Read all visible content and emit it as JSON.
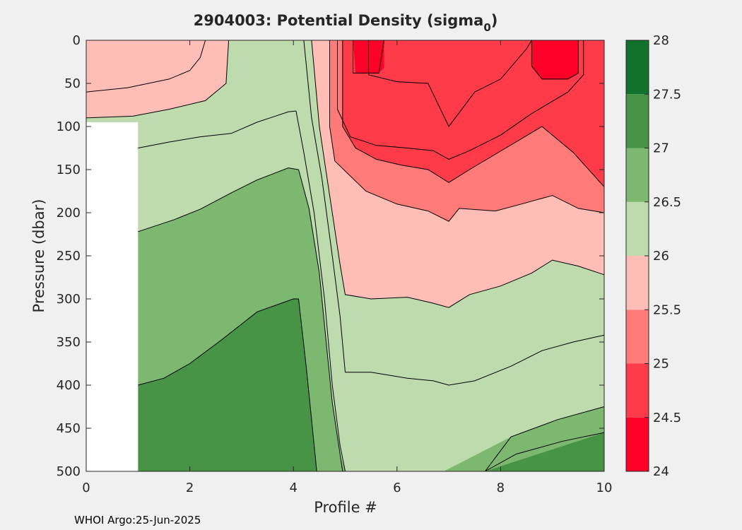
{
  "chart_data": {
    "type": "contour",
    "title_main": "2904003: Potential Density (sigma",
    "title_sub": "0",
    "title_end": ")",
    "xlabel": "Profile #",
    "ylabel": "Pressure (dbar)",
    "xlim": [
      0,
      10
    ],
    "ylim": [
      0,
      500
    ],
    "y_reversed": true,
    "x_ticks": [
      "0",
      "2",
      "4",
      "6",
      "8",
      "10"
    ],
    "y_ticks": [
      "0",
      "50",
      "100",
      "150",
      "200",
      "250",
      "300",
      "350",
      "400",
      "450",
      "500"
    ],
    "colorbar": {
      "range": [
        24,
        28
      ],
      "ticks": [
        "24",
        "24.5",
        "25",
        "25.5",
        "26",
        "26.5",
        "27",
        "27.5",
        "28"
      ],
      "level_colors": [
        "#ff0029",
        "#ff3b49",
        "#fe7b79",
        "#ffbdb8",
        "#bedbae",
        "#7cb870",
        "#479447",
        "#11722b"
      ]
    },
    "bands": [
      {
        "level": "24.5-25",
        "points": [
          [
            4.95,
            0
          ],
          [
            10,
            0
          ],
          [
            10,
            170
          ],
          [
            9.4,
            130
          ],
          [
            8.8,
            100
          ],
          [
            8.1,
            125
          ],
          [
            7.4,
            150
          ],
          [
            7.0,
            165
          ],
          [
            6.6,
            150
          ],
          [
            6.1,
            145
          ],
          [
            5.6,
            138
          ],
          [
            5.2,
            125
          ],
          [
            4.95,
            100
          ]
        ]
      },
      {
        "level": "24-24.5",
        "points": [
          [
            5.15,
            0
          ],
          [
            5.75,
            0
          ],
          [
            5.75,
            32
          ],
          [
            5.65,
            38
          ],
          [
            5.2,
            38
          ]
        ]
      },
      {
        "level": "24-24.5",
        "points": [
          [
            8.6,
            0
          ],
          [
            9.5,
            0
          ],
          [
            9.5,
            38
          ],
          [
            9.3,
            45
          ],
          [
            8.8,
            45
          ],
          [
            8.6,
            30
          ]
        ]
      },
      {
        "level": "25-25.5",
        "points": [
          [
            4.7,
            0
          ],
          [
            4.95,
            0
          ],
          [
            4.95,
            100
          ],
          [
            5.2,
            125
          ],
          [
            5.6,
            138
          ],
          [
            6.1,
            145
          ],
          [
            6.6,
            150
          ],
          [
            7.0,
            165
          ],
          [
            7.4,
            150
          ],
          [
            8.1,
            125
          ],
          [
            8.8,
            100
          ],
          [
            9.4,
            130
          ],
          [
            10,
            170
          ],
          [
            10,
            200
          ],
          [
            9.5,
            195
          ],
          [
            9.0,
            180
          ],
          [
            8.4,
            190
          ],
          [
            7.9,
            198
          ],
          [
            7.2,
            195
          ],
          [
            7.0,
            210
          ],
          [
            6.6,
            198
          ],
          [
            6.0,
            190
          ],
          [
            5.4,
            175
          ],
          [
            4.8,
            140
          ],
          [
            4.7,
            100
          ]
        ]
      },
      {
        "level": "25.5-26",
        "points": [
          [
            2.75,
            0
          ],
          [
            4.35,
            0
          ],
          [
            4.5,
            100
          ],
          [
            4.7,
            180
          ],
          [
            4.9,
            260
          ],
          [
            5.0,
            295
          ],
          [
            5.5,
            300
          ],
          [
            6.2,
            298
          ],
          [
            6.7,
            305
          ],
          [
            7.0,
            310
          ],
          [
            7.4,
            295
          ],
          [
            8.0,
            285
          ],
          [
            8.6,
            270
          ],
          [
            9.0,
            255
          ],
          [
            9.5,
            262
          ],
          [
            10,
            272
          ],
          [
            10,
            200
          ],
          [
            9.5,
            195
          ],
          [
            9.0,
            180
          ],
          [
            8.4,
            190
          ],
          [
            7.9,
            198
          ],
          [
            7.2,
            195
          ],
          [
            7.0,
            210
          ],
          [
            6.6,
            198
          ],
          [
            6.0,
            190
          ],
          [
            5.4,
            175
          ],
          [
            4.8,
            140
          ],
          [
            4.7,
            100
          ],
          [
            4.7,
            0
          ],
          [
            4.4,
            0
          ],
          [
            4.2,
            0
          ],
          [
            2.75,
            0
          ]
        ]
      },
      {
        "level": "25.5-26",
        "points": [
          [
            0,
            0
          ],
          [
            2.75,
            0
          ],
          [
            2.7,
            50
          ],
          [
            2.3,
            70
          ],
          [
            1.6,
            80
          ],
          [
            0.9,
            88
          ],
          [
            0,
            90
          ]
        ]
      },
      {
        "level": "26.5-27",
        "points": [
          [
            1.0,
            222
          ],
          [
            1.7,
            208
          ],
          [
            2.2,
            196
          ],
          [
            2.8,
            177
          ],
          [
            3.3,
            162
          ],
          [
            3.9,
            148
          ],
          [
            4.1,
            150
          ],
          [
            4.3,
            195
          ],
          [
            4.5,
            270
          ],
          [
            4.65,
            360
          ],
          [
            4.75,
            420
          ],
          [
            4.9,
            480
          ],
          [
            5.0,
            500
          ],
          [
            4.45,
            500
          ],
          [
            4.35,
            440
          ],
          [
            4.25,
            380
          ],
          [
            4.1,
            300
          ],
          [
            4.0,
            300
          ],
          [
            3.3,
            315
          ],
          [
            2.6,
            348
          ],
          [
            2.0,
            375
          ],
          [
            1.5,
            392
          ],
          [
            1.0,
            400
          ]
        ]
      },
      {
        "level": "27-27.5",
        "points": [
          [
            1.0,
            400
          ],
          [
            1.5,
            392
          ],
          [
            2.0,
            375
          ],
          [
            2.6,
            348
          ],
          [
            3.3,
            315
          ],
          [
            4.0,
            300
          ],
          [
            4.1,
            300
          ],
          [
            4.25,
            380
          ],
          [
            4.35,
            440
          ],
          [
            4.45,
            500
          ],
          [
            1.0,
            500
          ]
        ]
      },
      {
        "level": "27-27.5",
        "points": [
          [
            7.7,
            500
          ],
          [
            8.3,
            480
          ],
          [
            9.2,
            465
          ],
          [
            10,
            455
          ],
          [
            10,
            500
          ]
        ]
      },
      {
        "level": "26.5-27",
        "points": [
          [
            6.9,
            500
          ],
          [
            7.7,
            500
          ],
          [
            10,
            455
          ],
          [
            10,
            425
          ],
          [
            9.1,
            440
          ],
          [
            8.2,
            460
          ]
        ]
      }
    ],
    "contour_lines": [
      [
        [
          0,
          60
        ],
        [
          0.8,
          55
        ],
        [
          1.6,
          45
        ],
        [
          2.0,
          35
        ],
        [
          2.2,
          20
        ],
        [
          2.3,
          0
        ]
      ],
      [
        [
          0,
          90
        ],
        [
          0.9,
          88
        ],
        [
          1.6,
          80
        ],
        [
          2.3,
          70
        ],
        [
          2.7,
          50
        ],
        [
          2.75,
          0
        ]
      ],
      [
        [
          1.0,
          125
        ],
        [
          1.6,
          118
        ],
        [
          2.2,
          112
        ],
        [
          2.8,
          108
        ],
        [
          3.3,
          95
        ],
        [
          3.9,
          83
        ],
        [
          4.05,
          82
        ]
      ],
      [
        [
          1.0,
          222
        ],
        [
          1.7,
          208
        ],
        [
          2.2,
          196
        ],
        [
          2.8,
          177
        ],
        [
          3.3,
          162
        ],
        [
          3.9,
          148
        ],
        [
          4.1,
          150
        ]
      ],
      [
        [
          1.0,
          400
        ],
        [
          1.5,
          392
        ],
        [
          2.0,
          375
        ],
        [
          2.6,
          348
        ],
        [
          3.3,
          315
        ],
        [
          4.0,
          300
        ],
        [
          4.1,
          300
        ]
      ],
      [
        [
          4.05,
          82
        ],
        [
          4.2,
          130
        ],
        [
          4.4,
          200
        ],
        [
          4.6,
          300
        ],
        [
          4.75,
          400
        ],
        [
          4.9,
          470
        ],
        [
          5.0,
          500
        ]
      ],
      [
        [
          4.1,
          150
        ],
        [
          4.3,
          195
        ],
        [
          4.5,
          270
        ],
        [
          4.65,
          360
        ],
        [
          4.75,
          420
        ],
        [
          4.9,
          480
        ],
        [
          4.95,
          500
        ]
      ],
      [
        [
          4.1,
          300
        ],
        [
          4.25,
          380
        ],
        [
          4.35,
          440
        ],
        [
          4.45,
          500
        ]
      ],
      [
        [
          4.35,
          0
        ],
        [
          4.5,
          100
        ],
        [
          4.7,
          180
        ],
        [
          4.9,
          260
        ],
        [
          5.0,
          295
        ],
        [
          5.5,
          300
        ],
        [
          6.2,
          298
        ],
        [
          6.7,
          305
        ],
        [
          7.0,
          310
        ],
        [
          7.4,
          295
        ],
        [
          8.0,
          285
        ],
        [
          8.6,
          270
        ],
        [
          9.0,
          255
        ],
        [
          9.5,
          262
        ],
        [
          10,
          272
        ]
      ],
      [
        [
          4.2,
          0
        ],
        [
          4.35,
          90
        ],
        [
          4.55,
          160
        ],
        [
          4.75,
          250
        ],
        [
          4.9,
          320
        ],
        [
          5.0,
          385
        ],
        [
          5.5,
          385
        ],
        [
          6.2,
          392
        ],
        [
          6.7,
          395
        ],
        [
          7.0,
          400
        ],
        [
          7.5,
          395
        ],
        [
          8.2,
          378
        ],
        [
          8.8,
          360
        ],
        [
          9.4,
          350
        ],
        [
          10,
          342
        ]
      ],
      [
        [
          4.7,
          0
        ],
        [
          4.7,
          100
        ],
        [
          4.8,
          140
        ],
        [
          5.4,
          175
        ],
        [
          6.0,
          190
        ],
        [
          6.6,
          198
        ],
        [
          7.0,
          210
        ],
        [
          7.2,
          195
        ],
        [
          7.9,
          198
        ],
        [
          8.4,
          190
        ],
        [
          9.0,
          180
        ],
        [
          9.5,
          195
        ],
        [
          10,
          200
        ]
      ],
      [
        [
          4.95,
          0
        ],
        [
          4.95,
          100
        ],
        [
          5.2,
          125
        ],
        [
          5.6,
          138
        ],
        [
          6.1,
          145
        ],
        [
          6.6,
          150
        ],
        [
          7.0,
          165
        ],
        [
          7.4,
          150
        ],
        [
          8.1,
          125
        ],
        [
          8.8,
          100
        ],
        [
          9.4,
          130
        ],
        [
          10,
          170
        ]
      ],
      [
        [
          4.85,
          0
        ],
        [
          4.85,
          80
        ],
        [
          5.1,
          112
        ],
        [
          5.6,
          122
        ],
        [
          6.2,
          125
        ],
        [
          6.7,
          128
        ],
        [
          7.0,
          138
        ],
        [
          7.4,
          128
        ],
        [
          8.0,
          110
        ],
        [
          8.6,
          85
        ],
        [
          9.3,
          60
        ],
        [
          9.6,
          40
        ],
        [
          9.6,
          0
        ]
      ],
      [
        [
          5.15,
          0
        ],
        [
          5.15,
          38
        ],
        [
          5.65,
          38
        ],
        [
          5.75,
          0
        ]
      ],
      [
        [
          8.6,
          0
        ],
        [
          8.6,
          30
        ],
        [
          8.8,
          45
        ],
        [
          9.3,
          45
        ],
        [
          9.5,
          38
        ],
        [
          9.5,
          0
        ]
      ],
      [
        [
          5.45,
          0
        ],
        [
          5.45,
          40
        ],
        [
          6.0,
          48
        ],
        [
          6.6,
          50
        ],
        [
          7.0,
          100
        ],
        [
          7.5,
          60
        ],
        [
          8.0,
          45
        ],
        [
          8.5,
          10
        ],
        [
          8.6,
          0
        ]
      ],
      [
        [
          7.7,
          500
        ],
        [
          8.3,
          480
        ],
        [
          9.2,
          465
        ],
        [
          10,
          455
        ]
      ],
      [
        [
          6.9,
          500
        ],
        [
          7.7,
          500
        ],
        [
          8.2,
          460
        ],
        [
          9.1,
          440
        ],
        [
          10,
          425
        ]
      ]
    ],
    "missing_region": {
      "x_range": [
        0,
        1
      ],
      "y_range": [
        95,
        500
      ]
    },
    "footer": "WHOI Argo:25-Jun-2025"
  }
}
